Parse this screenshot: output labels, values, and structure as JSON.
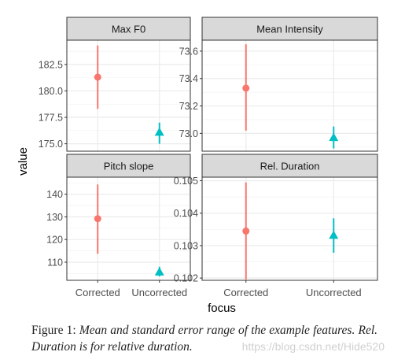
{
  "chart_data": {
    "type": "scatter",
    "xlabel": "focus",
    "ylabel": "value",
    "categories": [
      "Corrected",
      "Uncorrected"
    ],
    "colors": {
      "Corrected": "#f8766d",
      "Uncorrected": "#00bfc4"
    },
    "markers": {
      "Corrected": "circle",
      "Uncorrected": "triangle"
    },
    "grid": true,
    "legend": "none",
    "panels": [
      {
        "title": "Max F0",
        "ylim": [
          174.3,
          184.8
        ],
        "yticks": [
          "175.0",
          "177.5",
          "180.0",
          "182.5"
        ],
        "points": [
          {
            "focus": "Corrected",
            "mean": 181.3,
            "lower": 178.3,
            "upper": 184.3
          },
          {
            "focus": "Uncorrected",
            "mean": 176.1,
            "lower": 175.0,
            "upper": 177.0
          }
        ]
      },
      {
        "title": "Mean Intensity",
        "ylim": [
          72.87,
          73.68
        ],
        "yticks": [
          "73.0",
          "73.2",
          "73.4",
          "73.6"
        ],
        "points": [
          {
            "focus": "Corrected",
            "mean": 73.33,
            "lower": 73.02,
            "upper": 73.65
          },
          {
            "focus": "Uncorrected",
            "mean": 72.97,
            "lower": 72.89,
            "upper": 73.05
          }
        ]
      },
      {
        "title": "Pitch slope",
        "ylim": [
          102.0,
          147.5
        ],
        "yticks": [
          "110",
          "120",
          "130",
          "140"
        ],
        "points": [
          {
            "focus": "Corrected",
            "mean": 129.2,
            "lower": 113.7,
            "upper": 144.3
          },
          {
            "focus": "Uncorrected",
            "mean": 105.7,
            "lower": 103.7,
            "upper": 108.0
          }
        ]
      },
      {
        "title": "Rel. Duration",
        "ylim": [
          0.10193,
          0.10511
        ],
        "yticks": [
          "0.102",
          "0.103",
          "0.104",
          "0.105"
        ],
        "points": [
          {
            "focus": "Corrected",
            "mean": 0.10345,
            "lower": 0.10196,
            "upper": 0.10495
          },
          {
            "focus": "Uncorrected",
            "mean": 0.10332,
            "lower": 0.10278,
            "upper": 0.10384
          }
        ]
      }
    ]
  },
  "caption": {
    "label": "Figure 1:",
    "text": "Mean and standard error range of the example features. Rel. Duration is for relative duration."
  },
  "watermark": "https://blog.csdn.net/Hide520"
}
